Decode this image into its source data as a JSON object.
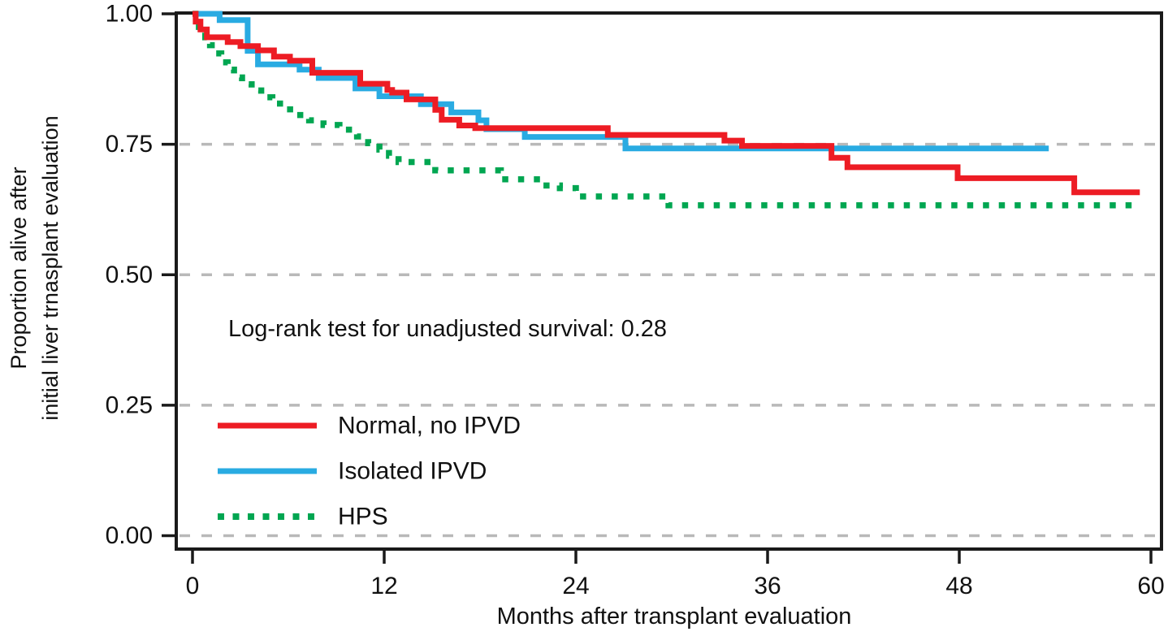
{
  "chart_data": {
    "type": "line",
    "subtype": "kaplan_meier_step",
    "title": "",
    "xlabel": "Months after transplant evaluation",
    "ylabel_lines": [
      "Proportion alive after",
      "initial liver trnasplant evaluation"
    ],
    "annotation": "Log-rank test for unadjusted survival: 0.28",
    "xlim": [
      0,
      60
    ],
    "ylim": [
      0.0,
      1.0
    ],
    "xticks": {
      "values": [
        0,
        12,
        24,
        36,
        48,
        60
      ],
      "labels": [
        "0",
        "12",
        "24",
        "36",
        "48",
        "60"
      ]
    },
    "yticks": {
      "values": [
        1.0,
        0.75,
        0.5,
        0.25,
        0.0
      ],
      "labels": [
        "1.00",
        "0.75",
        "0.50",
        "0.25",
        "0.00"
      ]
    },
    "gridlines": {
      "orientation": "horizontal",
      "at": [
        0.75,
        0.5,
        0.25,
        0.0
      ],
      "style": "dashed",
      "color": "#b9b9b9"
    },
    "axis_color": "#1a1a1a",
    "legend": {
      "position": "inside-lower-left",
      "entries": [
        "Normal, no IPVD",
        "Isolated IPVD",
        "HPS"
      ]
    },
    "series": [
      {
        "name": "Normal, no IPVD",
        "color": "#ed1c24",
        "line_style": "solid",
        "end_month": 59.3,
        "points": [
          [
            0,
            1.0
          ],
          [
            0.2,
            0.985
          ],
          [
            0.5,
            0.97
          ],
          [
            0.9,
            0.955
          ],
          [
            2.2,
            0.946
          ],
          [
            3.0,
            0.938
          ],
          [
            4.1,
            0.93
          ],
          [
            5.1,
            0.918
          ],
          [
            6.1,
            0.91
          ],
          [
            7.5,
            0.887
          ],
          [
            10.5,
            0.866
          ],
          [
            12.2,
            0.854
          ],
          [
            12.5,
            0.849
          ],
          [
            13.4,
            0.836
          ],
          [
            15.2,
            0.816
          ],
          [
            15.6,
            0.797
          ],
          [
            16.7,
            0.786
          ],
          [
            17.7,
            0.781
          ],
          [
            26.0,
            0.768
          ],
          [
            33.3,
            0.757
          ],
          [
            34.4,
            0.747
          ],
          [
            40.0,
            0.724
          ],
          [
            41.0,
            0.706
          ],
          [
            47.9,
            0.685
          ],
          [
            55.2,
            0.658
          ]
        ]
      },
      {
        "name": "Isolated IPVD",
        "color": "#29abe2",
        "line_style": "solid",
        "end_month": 53.6,
        "points": [
          [
            0,
            1.0
          ],
          [
            1.7,
            0.988
          ],
          [
            3.45,
            0.929
          ],
          [
            4.1,
            0.903
          ],
          [
            6.7,
            0.893
          ],
          [
            7.9,
            0.877
          ],
          [
            10.2,
            0.857
          ],
          [
            11.7,
            0.842
          ],
          [
            14.3,
            0.827
          ],
          [
            16.2,
            0.811
          ],
          [
            17.9,
            0.796
          ],
          [
            18.4,
            0.779
          ],
          [
            20.8,
            0.764
          ],
          [
            27.1,
            0.742
          ]
        ]
      },
      {
        "name": "HPS",
        "color": "#00a651",
        "line_style": "dotted",
        "end_month": 59.2,
        "points": [
          [
            0,
            1.0
          ],
          [
            0.4,
            0.975
          ],
          [
            0.8,
            0.955
          ],
          [
            1.1,
            0.94
          ],
          [
            1.4,
            0.924
          ],
          [
            1.8,
            0.907
          ],
          [
            2.2,
            0.893
          ],
          [
            2.6,
            0.878
          ],
          [
            3.1,
            0.865
          ],
          [
            3.7,
            0.853
          ],
          [
            4.3,
            0.84
          ],
          [
            5.0,
            0.828
          ],
          [
            5.7,
            0.817
          ],
          [
            6.5,
            0.806
          ],
          [
            7.3,
            0.796
          ],
          [
            8.2,
            0.787
          ],
          [
            9.2,
            0.778
          ],
          [
            10.3,
            0.765
          ],
          [
            11.0,
            0.752
          ],
          [
            11.7,
            0.74
          ],
          [
            12.3,
            0.728
          ],
          [
            12.9,
            0.716
          ],
          [
            15.2,
            0.7
          ],
          [
            19.3,
            0.683
          ],
          [
            21.8,
            0.671
          ],
          [
            23.0,
            0.666
          ],
          [
            24.0,
            0.65
          ],
          [
            29.8,
            0.633
          ]
        ]
      }
    ]
  }
}
